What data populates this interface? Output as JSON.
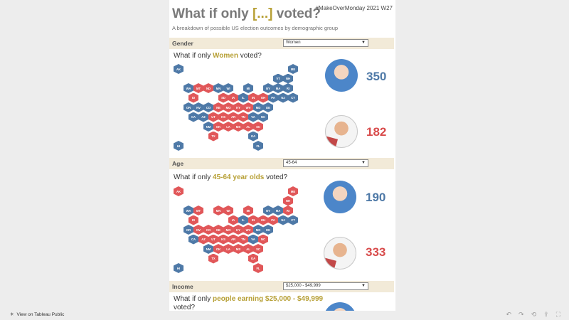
{
  "header": {
    "title_pre": "What if only ",
    "title_acc": "[...]",
    "title_post": " voted?",
    "hashtag": "#MakeOverMonday 2021 W27",
    "subtitle": "A breakdown of possible US election outcomes by demographic group"
  },
  "sections": [
    {
      "filter_label": "Gender",
      "filter_value": "Women",
      "question_pre": "What if only ",
      "question_acc": "Women",
      "question_post": " voted?",
      "dem_votes": "350",
      "rep_votes": "182"
    },
    {
      "filter_label": "Age",
      "filter_value": "45-64",
      "question_pre": "What if only ",
      "question_acc": "45-64 year olds",
      "question_post": " voted?",
      "dem_votes": "190",
      "rep_votes": "333"
    },
    {
      "filter_label": "Income",
      "filter_value": "$25,000 - $49,999",
      "question_pre": "What if only ",
      "question_acc": "people earning $25,000 - $49,999",
      "question_post": " voted?"
    }
  ],
  "footer": {
    "text": "View on Tableau Public"
  },
  "colors": {
    "democrat": "#4e79a7",
    "republican": "#e15759",
    "accent": "#b7a036"
  },
  "map1": [
    [
      "AK",
      "d"
    ],
    [
      "ME",
      "d"
    ],
    [
      "VT",
      "d"
    ],
    [
      "NH",
      "d"
    ],
    [
      "WA",
      "d"
    ],
    [
      "MT",
      "r"
    ],
    [
      "ND",
      "r"
    ],
    [
      "MN",
      "d"
    ],
    [
      "WI",
      "d"
    ],
    [
      "MI",
      "d"
    ],
    [
      "NY",
      "d"
    ],
    [
      "MA",
      "d"
    ],
    [
      "RI",
      "d"
    ],
    [
      "ID",
      "r"
    ],
    [
      "SD",
      "r"
    ],
    [
      "IA",
      "r"
    ],
    [
      "IL",
      "d"
    ],
    [
      "IN",
      "r"
    ],
    [
      "OH",
      "r"
    ],
    [
      "PA",
      "d"
    ],
    [
      "NJ",
      "d"
    ],
    [
      "CT",
      "d"
    ],
    [
      "OR",
      "d"
    ],
    [
      "NV",
      "d"
    ],
    [
      "CO",
      "d"
    ],
    [
      "NE",
      "r"
    ],
    [
      "MO",
      "r"
    ],
    [
      "KY",
      "r"
    ],
    [
      "WV",
      "r"
    ],
    [
      "MD",
      "d"
    ],
    [
      "DE",
      "d"
    ],
    [
      "CA",
      "d"
    ],
    [
      "AZ",
      "d"
    ],
    [
      "UT",
      "r"
    ],
    [
      "KS",
      "r"
    ],
    [
      "AR",
      "r"
    ],
    [
      "TN",
      "r"
    ],
    [
      "VA",
      "d"
    ],
    [
      "NC",
      "d"
    ],
    [
      "NM",
      "d"
    ],
    [
      "OK",
      "r"
    ],
    [
      "LA",
      "r"
    ],
    [
      "MS",
      "r"
    ],
    [
      "AL",
      "r"
    ],
    [
      "SC",
      "r"
    ],
    [
      "TX",
      "r"
    ],
    [
      "GA",
      "d"
    ],
    [
      "HI",
      "d"
    ],
    [
      "FL",
      "d"
    ]
  ],
  "map2": [
    [
      "AK",
      "r"
    ],
    [
      "ME",
      "r"
    ],
    [
      "NH",
      "r"
    ],
    [
      "WA",
      "d"
    ],
    [
      "MT",
      "r"
    ],
    [
      "MN",
      "r"
    ],
    [
      "WI",
      "r"
    ],
    [
      "MI",
      "r"
    ],
    [
      "NY",
      "d"
    ],
    [
      "MA",
      "d"
    ],
    [
      "RI",
      "r"
    ],
    [
      "ID",
      "r"
    ],
    [
      "IA",
      "r"
    ],
    [
      "IL",
      "d"
    ],
    [
      "IN",
      "r"
    ],
    [
      "OH",
      "r"
    ],
    [
      "PA",
      "r"
    ],
    [
      "NJ",
      "d"
    ],
    [
      "CT",
      "d"
    ],
    [
      "OR",
      "d"
    ],
    [
      "NV",
      "r"
    ],
    [
      "CO",
      "r"
    ],
    [
      "NE",
      "r"
    ],
    [
      "MO",
      "r"
    ],
    [
      "KY",
      "r"
    ],
    [
      "WV",
      "r"
    ],
    [
      "MD",
      "d"
    ],
    [
      "DE",
      "d"
    ],
    [
      "CA",
      "d"
    ],
    [
      "AZ",
      "r"
    ],
    [
      "UT",
      "r"
    ],
    [
      "KS",
      "r"
    ],
    [
      "AR",
      "r"
    ],
    [
      "TN",
      "r"
    ],
    [
      "VA",
      "d"
    ],
    [
      "NC",
      "r"
    ],
    [
      "NM",
      "d"
    ],
    [
      "OK",
      "r"
    ],
    [
      "LA",
      "r"
    ],
    [
      "MS",
      "r"
    ],
    [
      "AL",
      "r"
    ],
    [
      "SC",
      "r"
    ],
    [
      "TX",
      "r"
    ],
    [
      "GA",
      "r"
    ],
    [
      "HI",
      "d"
    ],
    [
      "FL",
      "r"
    ]
  ]
}
